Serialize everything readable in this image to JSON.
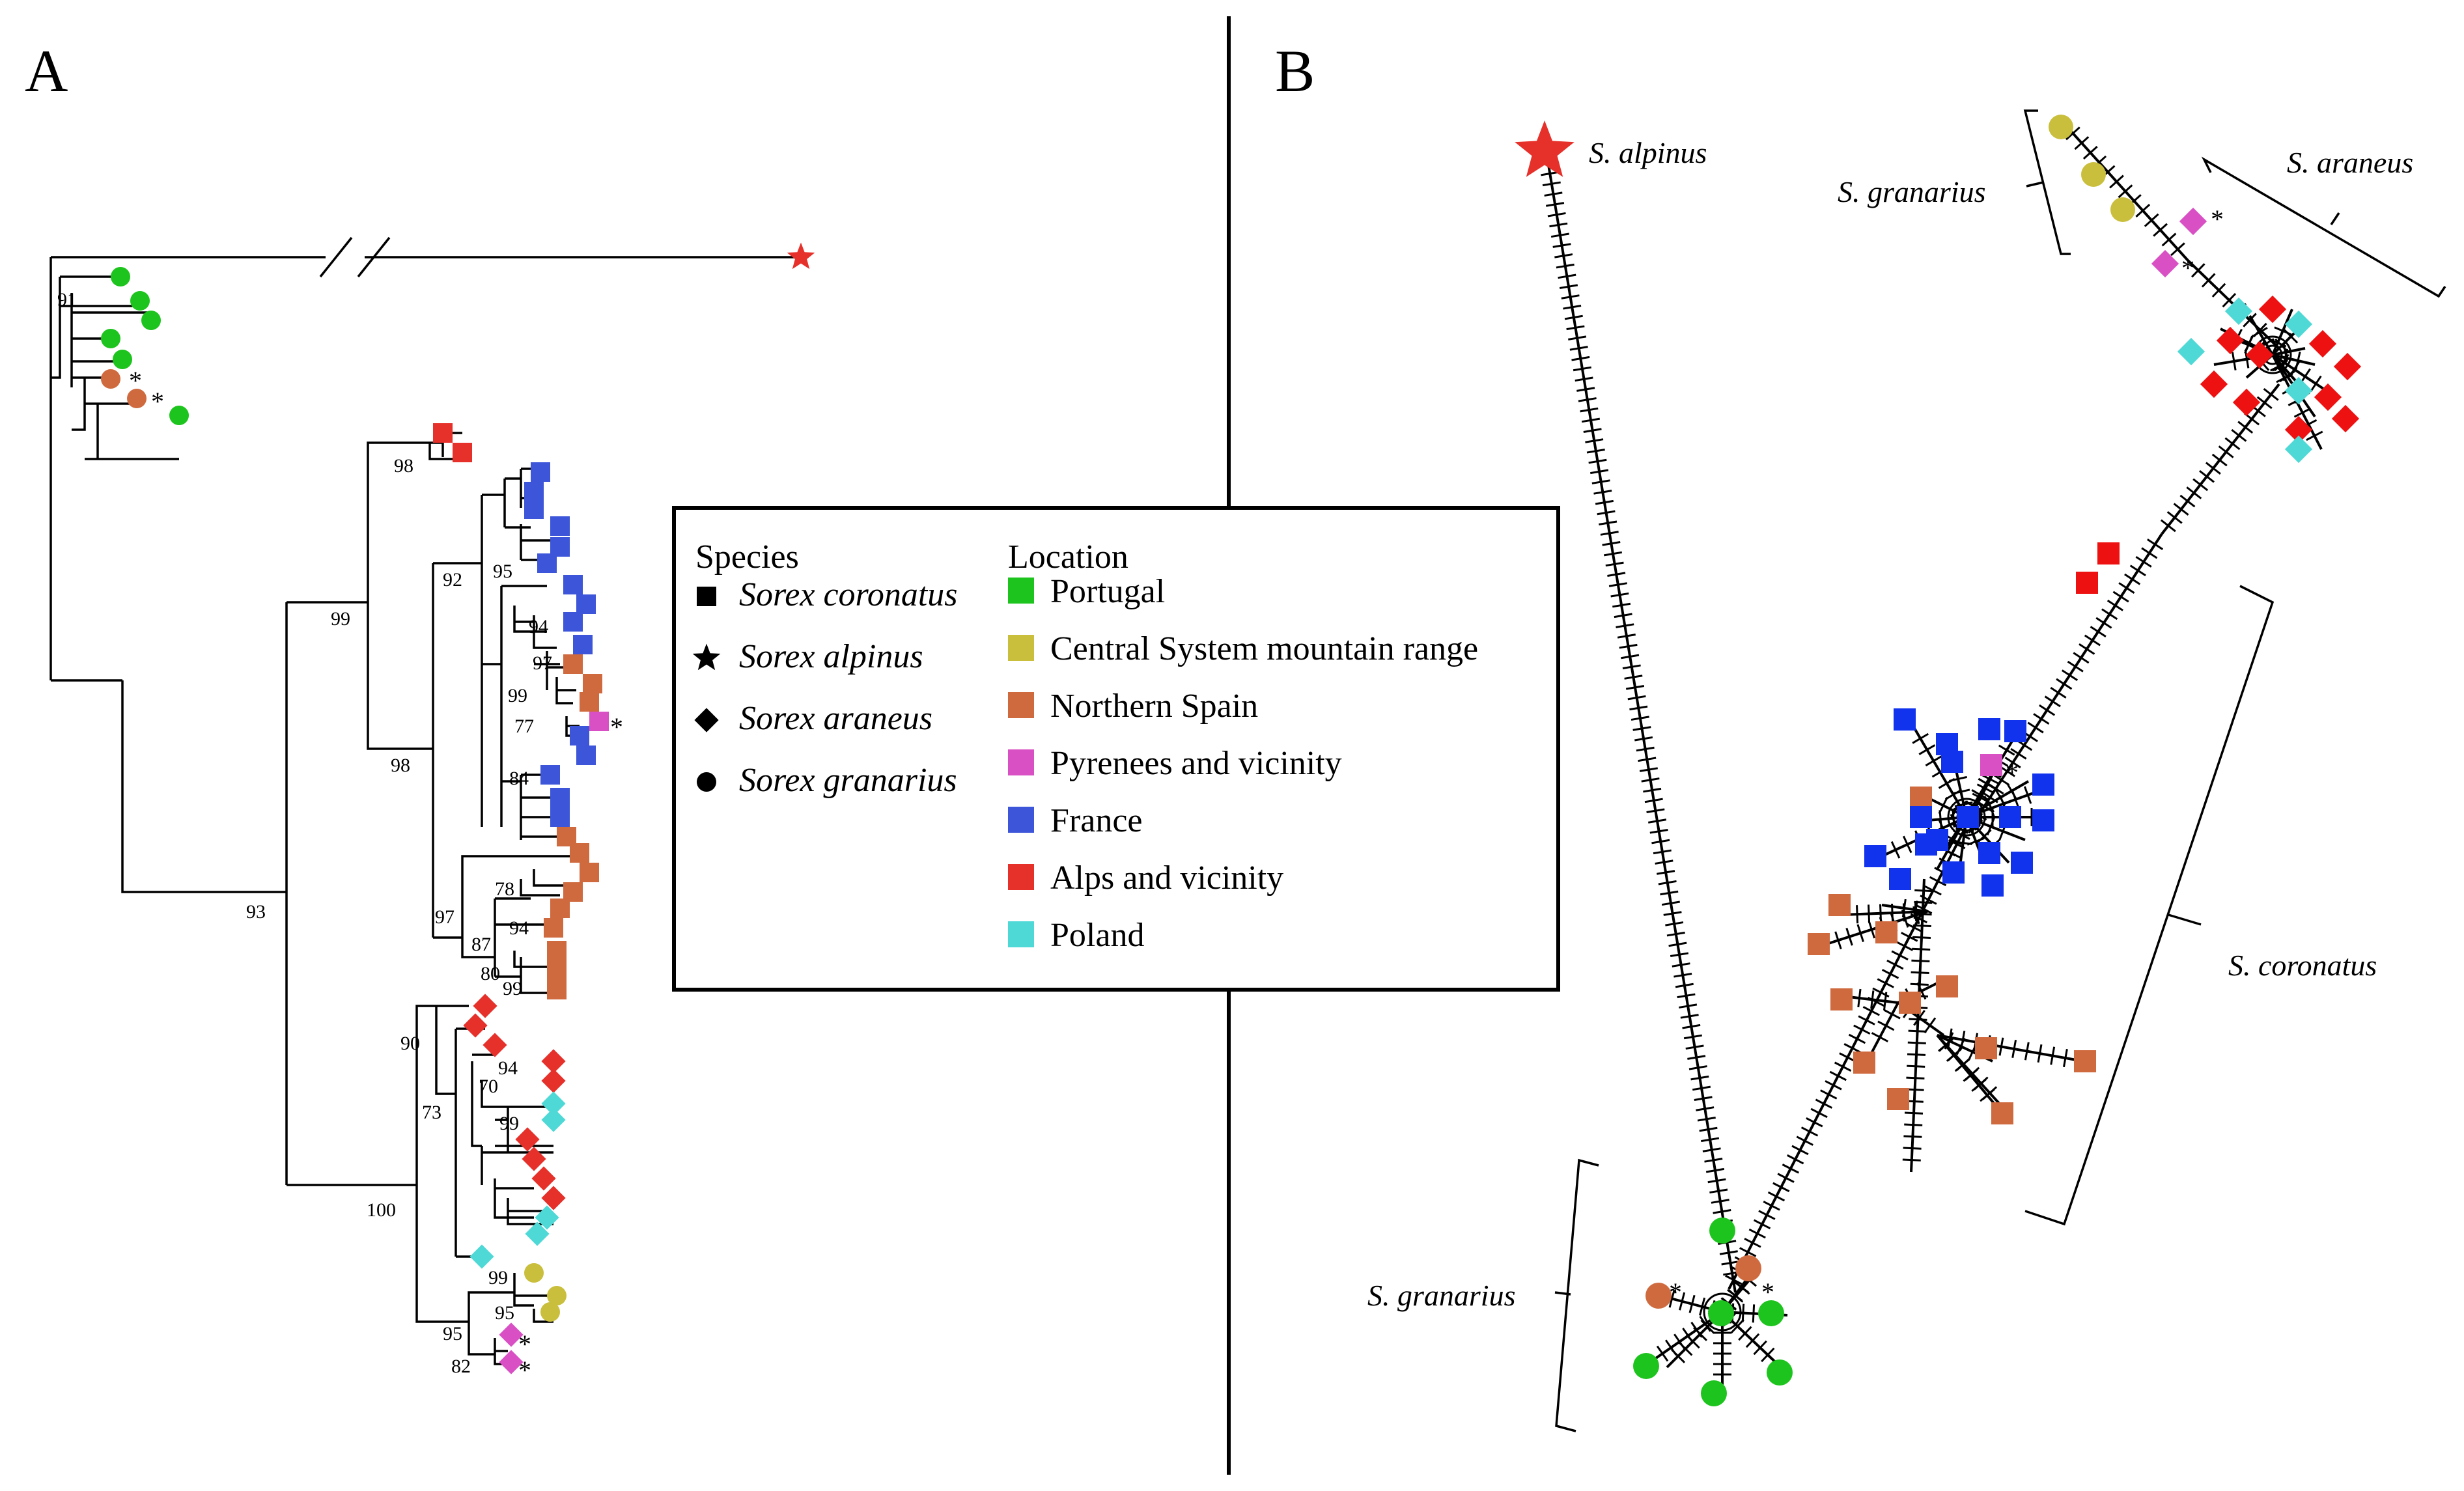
{
  "panels": {
    "a": "A",
    "b": "B"
  },
  "colors": {
    "Portugal": "#1dc41d",
    "Central System mountain range": "#c9bf3c",
    "Northern Spain": "#cf6a3f",
    "Pyrenees and vicinity": "#d94fc4",
    "France": "#3d55d8",
    "Alps and vicinity": "#e6302a",
    "Poland": "#4fd9d6",
    "France (network)": "#1133ee",
    "Alps (network)": "#ee1111",
    "France (network) ": "#1133ee"
  },
  "legend": {
    "species_title": "Species",
    "location_title": "Location",
    "species": [
      {
        "shape": "square",
        "name": "Sorex coronatus"
      },
      {
        "shape": "star",
        "name": "Sorex alpinus"
      },
      {
        "shape": "diamond",
        "name": "Sorex araneus"
      },
      {
        "shape": "circle",
        "name": "Sorex granarius"
      }
    ],
    "locations": [
      "Portugal",
      "Central System mountain range",
      "Northern Spain",
      "Pyrenees and vicinity",
      "France",
      "Alps and vicinity",
      "Poland"
    ]
  },
  "tree": {
    "bootstrap": [
      "91",
      "98",
      "99",
      "92",
      "95",
      "94",
      "97",
      "99",
      "77",
      "84",
      "98",
      "97",
      "78",
      "87",
      "94",
      "80",
      "99",
      "93",
      "90",
      "73",
      "94",
      "70",
      "99",
      "100",
      "99",
      "95",
      "95",
      "82"
    ],
    "asterisk": "*"
  },
  "network": {
    "labels": [
      "S. alpinus",
      "S. granarius",
      "S. araneus",
      "S. coronatus",
      "S. granarius"
    ],
    "asterisk": "*"
  }
}
